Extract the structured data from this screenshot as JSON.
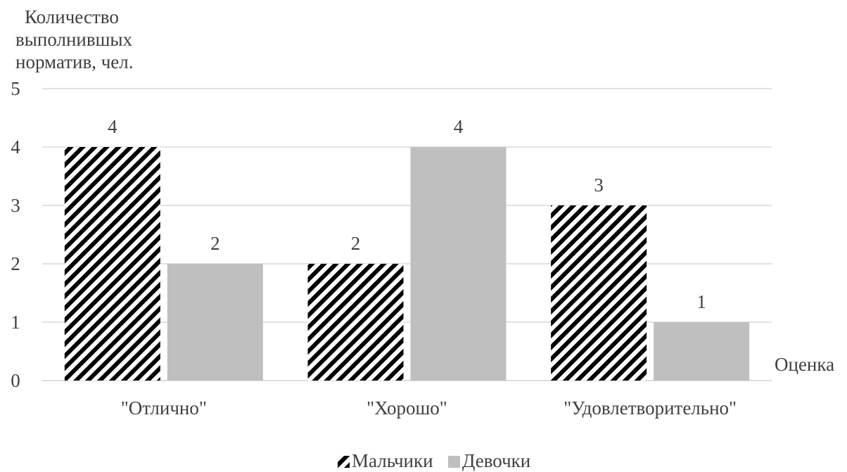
{
  "chart_data": {
    "type": "bar",
    "ylabel_lines": [
      "Количество",
      "выполнившых",
      "норматив, чел."
    ],
    "xlabel": "Оценка",
    "categories": [
      "\"Отлично\"",
      "\"Хорошо\"",
      "\"Удовлетворительно\""
    ],
    "series": [
      {
        "name": "Мальчики",
        "values": [
          4,
          2,
          3
        ],
        "pattern": "diagonal-hatch",
        "color": "#000000"
      },
      {
        "name": "Девочки",
        "values": [
          2,
          4,
          1
        ],
        "pattern": "solid",
        "color": "#bfbfbf"
      }
    ],
    "ylim": [
      0,
      5
    ],
    "yticks": [
      0,
      1,
      2,
      3,
      4,
      5
    ],
    "grid": true,
    "legend_position": "bottom-center",
    "data_labels": true
  }
}
